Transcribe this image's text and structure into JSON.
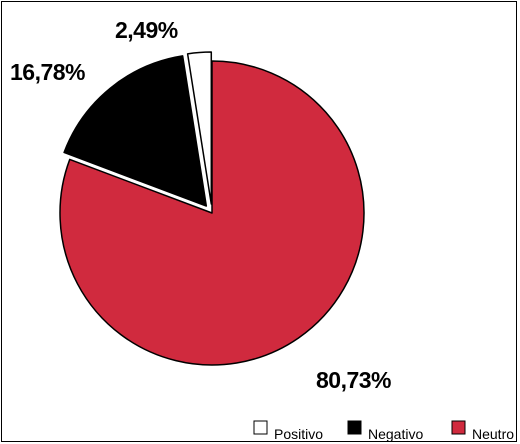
{
  "chart_data": {
    "type": "pie",
    "labels": [
      "Positivo",
      "Negativo",
      "Neutro"
    ],
    "values": [
      2.49,
      16.78,
      80.73
    ],
    "value_labels": [
      "2,49%",
      "16,78%",
      "80,73%"
    ],
    "colors": [
      "#ffffff",
      "#000000",
      "#d02a3e"
    ],
    "exploded": [
      true,
      true,
      false
    ],
    "legend": {
      "placement": "bottom-right",
      "entries": [
        "Positivo",
        "Negativo",
        "Neutro"
      ]
    }
  }
}
